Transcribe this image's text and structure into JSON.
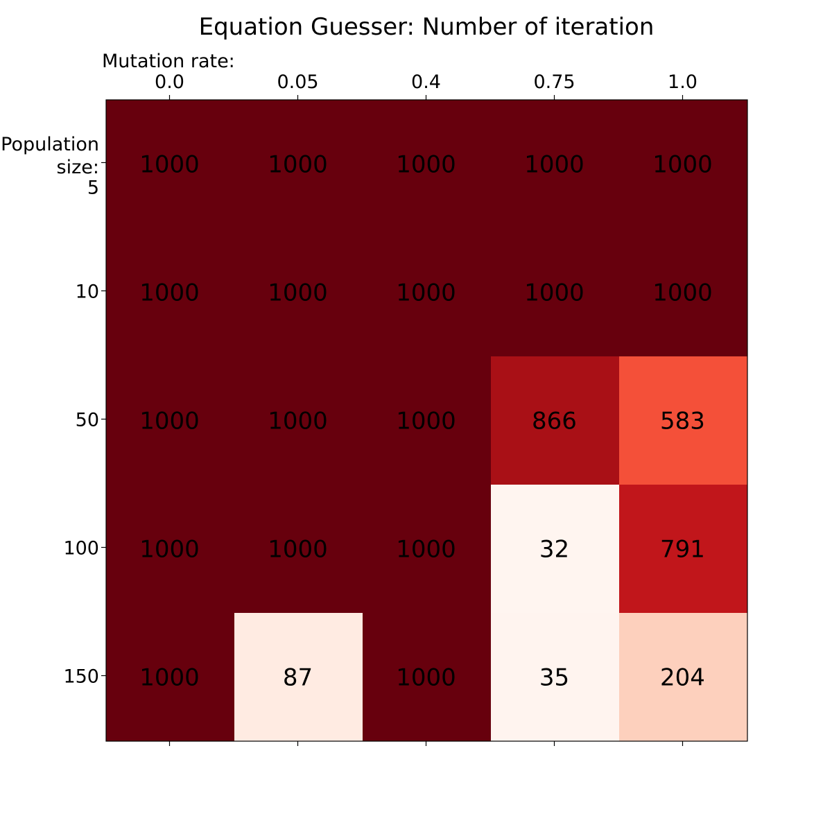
{
  "chart_data": {
    "type": "heatmap",
    "title": "Equation Guesser: Number of iteration",
    "xlabel": "Mutation rate:",
    "ylabel": [
      "Population",
      "size:"
    ],
    "x_categories": [
      "0.0",
      "0.05",
      "0.4",
      "0.75",
      "1.0"
    ],
    "y_categories": [
      "5",
      "10",
      "50",
      "100",
      "150"
    ],
    "values": [
      [
        1000,
        1000,
        1000,
        1000,
        1000
      ],
      [
        1000,
        1000,
        1000,
        1000,
        1000
      ],
      [
        1000,
        1000,
        1000,
        866,
        583
      ],
      [
        1000,
        1000,
        1000,
        32,
        791
      ],
      [
        1000,
        87,
        1000,
        35,
        204
      ]
    ],
    "x_axis_position": "top",
    "colormap": "Reds",
    "color_range": [
      32,
      1000
    ],
    "grid": false,
    "colorbar": false
  }
}
